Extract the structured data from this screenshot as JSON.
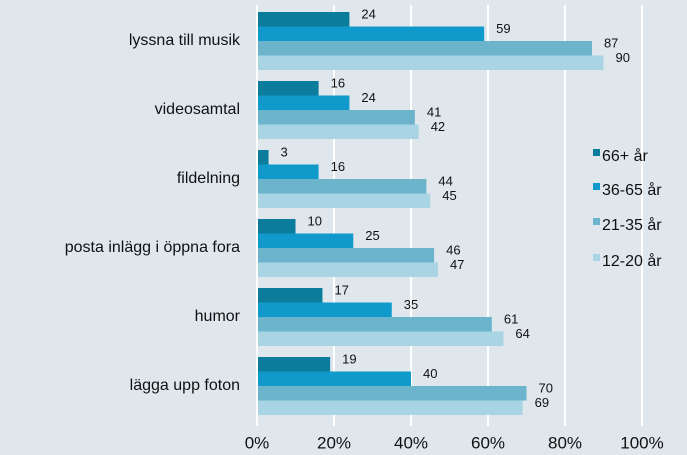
{
  "chart_data": {
    "type": "bar",
    "orientation": "horizontal",
    "categories": [
      "lyssna till musik",
      "videosamtal",
      "fildelning",
      "posta inlägg i öppna fora",
      "humor",
      "lägga upp foton"
    ],
    "series": [
      {
        "name": "66+ år",
        "color": "#0b7c9c",
        "values": [
          24,
          16,
          3,
          10,
          17,
          19
        ]
      },
      {
        "name": "36-65 år",
        "color": "#0f9acb",
        "values": [
          59,
          24,
          16,
          25,
          35,
          40
        ]
      },
      {
        "name": "21-35 år",
        "color": "#6cb4cc",
        "values": [
          87,
          41,
          44,
          46,
          61,
          70
        ]
      },
      {
        "name": "12-20 år",
        "color": "#a8d4e3",
        "values": [
          90,
          42,
          45,
          47,
          64,
          69
        ]
      }
    ],
    "xlim": [
      0,
      100
    ],
    "xticks": [
      {
        "value": 0,
        "label": "0%"
      },
      {
        "value": 20,
        "label": "20%"
      },
      {
        "value": 40,
        "label": "40%"
      },
      {
        "value": 60,
        "label": "60%"
      },
      {
        "value": 80,
        "label": "80%"
      },
      {
        "value": 100,
        "label": "100%"
      }
    ],
    "grid": true,
    "legend": "right"
  }
}
